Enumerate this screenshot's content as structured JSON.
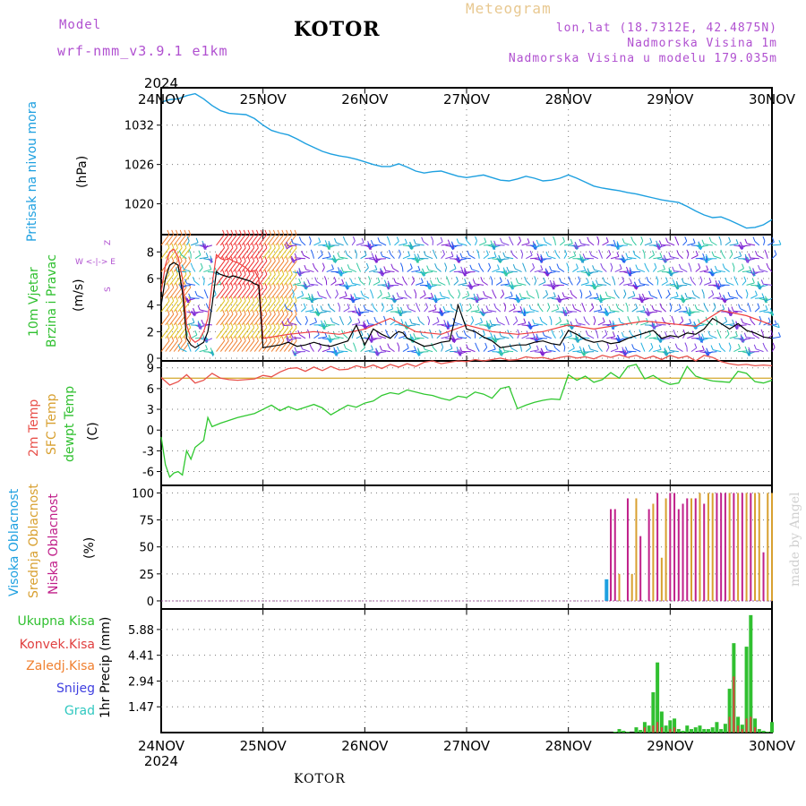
{
  "header": {
    "model_label": "Model",
    "model_name": "wrf-nmm_v3.9.1 e1km",
    "title": "KOTOR",
    "meteogram_label": "Meteogram",
    "lonlat": "lon,lat (18.7312E, 42.4875N)",
    "elevation": "Nadmorska Visina 1m",
    "model_elevation": "Nadmorska Visina u modelu 179.035m",
    "year_top": "2024",
    "year_bottom": "2024",
    "bottom_label": "KOTOR",
    "watermark": "made by Angel"
  },
  "colors": {
    "pressure": "#1ea0e0",
    "temp_2m": "#e8504a",
    "sfc_temp": "#d8b040",
    "dewpoint": "#30c830",
    "cloud_high": "#1ea0e0",
    "cloud_mid": "#d8a030",
    "cloud_low": "#c0208a",
    "rain_total": "#30c030",
    "rain_conv": "#e04040",
    "freezing": "#f08030",
    "snow": "#4040e0",
    "grad": "#30c8c0",
    "wind_speed": "#000000",
    "gust": "#f04040"
  },
  "panel_labels": {
    "pressure": {
      "name": "Pritisak na nivou mora",
      "unit": "(hPa)"
    },
    "wind": {
      "name1": "10m Vjetar",
      "name2": "Brzina i Pravac",
      "unit": "(m/s)",
      "compass1": "Z",
      "compass2": "W <-|-> E",
      "compass3": "S"
    },
    "temp": {
      "name1": "2m Temp",
      "name2": "SFC Temp",
      "name3": "dewpt Temp",
      "unit": "(C)"
    },
    "cloud": {
      "name1": "Visoka Oblacnost",
      "name2": "Srednja Oblacnost",
      "name3": "Niska Oblacnost",
      "unit": "(%)"
    },
    "precip": {
      "unit": "1hr Precip (mm)",
      "legend": [
        "Ukupna Kisa",
        "Konvek.Kisa",
        "Zaledj.Kisa",
        "Snijeg",
        "Grad"
      ]
    }
  },
  "chart_data": [
    {
      "type": "line",
      "title": "",
      "ylabel": "Pritisak na nivou mora (hPa)",
      "x_ticks": [
        "24NOV",
        "25NOV",
        "26NOV",
        "27NOV",
        "28NOV",
        "29NOV",
        "30NOV"
      ],
      "y_ticks": [
        1020,
        1026,
        1032
      ],
      "ylim": [
        1015.3,
        1037.7
      ],
      "x_hours_range": [
        0,
        144
      ],
      "series": [
        {
          "name": "Pritisak na nivou mora",
          "x": [
            0,
            2,
            4,
            6,
            8,
            10,
            12,
            14,
            16,
            18,
            20,
            22,
            24,
            26,
            28,
            30,
            32,
            34,
            36,
            38,
            40,
            42,
            44,
            46,
            48,
            50,
            52,
            54,
            56,
            58,
            60,
            62,
            64,
            66,
            68,
            70,
            72,
            74,
            76,
            78,
            80,
            82,
            84,
            86,
            88,
            90,
            92,
            94,
            96,
            98,
            100,
            102,
            104,
            106,
            108,
            110,
            112,
            114,
            116,
            118,
            120,
            122,
            124,
            126,
            128,
            130,
            132,
            134,
            136,
            138,
            140,
            142,
            144
          ],
          "y": [
            1035.5,
            1035.9,
            1036.0,
            1036.5,
            1036.8,
            1036.0,
            1035.0,
            1034.2,
            1033.8,
            1033.7,
            1033.6,
            1033.0,
            1032.0,
            1031.2,
            1030.8,
            1030.5,
            1029.9,
            1029.2,
            1028.6,
            1028.0,
            1027.6,
            1027.3,
            1027.1,
            1026.8,
            1026.4,
            1026.0,
            1025.7,
            1025.7,
            1026.1,
            1025.6,
            1025.0,
            1024.7,
            1024.9,
            1025.0,
            1024.6,
            1024.2,
            1024.0,
            1024.2,
            1024.4,
            1024.0,
            1023.6,
            1023.5,
            1023.8,
            1024.2,
            1023.9,
            1023.5,
            1023.6,
            1023.9,
            1024.4,
            1023.9,
            1023.3,
            1022.7,
            1022.4,
            1022.2,
            1022.0,
            1021.7,
            1021.5,
            1021.2,
            1020.9,
            1020.6,
            1020.4,
            1020.2,
            1019.6,
            1018.9,
            1018.3,
            1017.9,
            1018.0,
            1017.5,
            1016.9,
            1016.3,
            1016.4,
            1016.8,
            1017.6
          ]
        }
      ]
    },
    {
      "type": "line",
      "title": "",
      "ylabel": "10m Vjetar Brzina i Pravac (m/s)",
      "y_ticks": [
        0,
        2,
        4,
        6,
        8
      ],
      "ylim": [
        -0.2,
        9.3
      ],
      "x_hours_range": [
        0,
        144
      ],
      "barb_rows_ms": [
        0.5,
        1.5,
        2.5,
        3.5,
        4.5,
        5.5,
        6.5,
        7.5,
        8.5
      ],
      "series": [
        {
          "name": "speed",
          "x": [
            0,
            1,
            2,
            3,
            4,
            5,
            6,
            7,
            8,
            9,
            10,
            11,
            12,
            13,
            14,
            15,
            16,
            17,
            18,
            19,
            20,
            21,
            22,
            23,
            24,
            26,
            28,
            30,
            32,
            34,
            36,
            38,
            40,
            42,
            44,
            46,
            48,
            50,
            52,
            54,
            55,
            56,
            57,
            58,
            60,
            62,
            64,
            66,
            68,
            70,
            72,
            74,
            76,
            78,
            80,
            82,
            84,
            86,
            88,
            90,
            92,
            94,
            96,
            98,
            100,
            102,
            104,
            106,
            108,
            110,
            112,
            114,
            116,
            118,
            120,
            122,
            124,
            126,
            128,
            130,
            132,
            134,
            136,
            138,
            140,
            142,
            144
          ],
          "y": [
            4.0,
            6.0,
            7.0,
            7.2,
            7.0,
            5.0,
            1.5,
            1.0,
            0.8,
            1.0,
            1.2,
            2.0,
            4.0,
            6.5,
            6.3,
            6.2,
            6.1,
            6.2,
            6.1,
            6.0,
            5.9,
            5.8,
            5.6,
            5.5,
            0.8,
            0.9,
            1.0,
            1.2,
            0.9,
            1.0,
            1.2,
            1.0,
            0.9,
            1.1,
            1.3,
            2.5,
            1.0,
            2.2,
            1.8,
            1.5,
            1.8,
            2.0,
            1.9,
            1.5,
            1.2,
            0.9,
            1.0,
            1.2,
            1.3,
            4.0,
            2.2,
            2.0,
            1.6,
            1.3,
            0.8,
            0.9,
            1.0,
            1.0,
            1.2,
            1.3,
            1.1,
            1.0,
            2.1,
            1.8,
            1.4,
            1.2,
            1.3,
            1.1,
            1.2,
            1.5,
            1.7,
            1.9,
            2.1,
            1.5,
            1.7,
            1.6,
            1.9,
            1.8,
            2.2,
            3.0,
            2.6,
            2.2,
            2.6,
            2.1,
            1.9,
            1.6,
            1.5
          ]
        },
        {
          "name": "gust",
          "x": [
            0,
            1,
            2,
            3,
            4,
            5,
            6,
            7,
            8,
            9,
            10,
            11,
            12,
            13,
            14,
            15,
            16,
            17,
            18,
            19,
            20,
            21,
            22,
            23,
            24,
            30,
            36,
            42,
            48,
            54,
            60,
            66,
            72,
            78,
            84,
            90,
            96,
            102,
            108,
            114,
            120,
            126,
            132,
            138,
            144
          ],
          "y": [
            5.0,
            7.0,
            8.0,
            8.2,
            7.6,
            6.0,
            2.5,
            1.5,
            1.2,
            1.4,
            2.0,
            3.0,
            5.5,
            7.8,
            7.5,
            7.4,
            7.5,
            7.3,
            7.2,
            7.0,
            6.8,
            6.5,
            6.6,
            6.0,
            1.5,
            1.8,
            2.0,
            1.8,
            2.2,
            3.0,
            2.0,
            1.8,
            2.5,
            2.0,
            1.8,
            2.0,
            2.5,
            2.2,
            2.5,
            2.8,
            2.6,
            2.4,
            3.6,
            3.2,
            2.5
          ]
        }
      ]
    },
    {
      "type": "line",
      "title": "",
      "ylabel": "(C)",
      "y_ticks": [
        -6,
        -3,
        0,
        3,
        6,
        9
      ],
      "ylim": [
        -8.0,
        10.0
      ],
      "x_hours_range": [
        0,
        144
      ],
      "series": [
        {
          "name": "2m Temp",
          "x": [
            0,
            2,
            4,
            6,
            8,
            10,
            12,
            14,
            16,
            18,
            20,
            22,
            24,
            26,
            28,
            30,
            32,
            34,
            36,
            38,
            40,
            42,
            44,
            46,
            48,
            50,
            52,
            54,
            56,
            58,
            60,
            62,
            64,
            66,
            68,
            70,
            72,
            74,
            76,
            78,
            80,
            82,
            84,
            86,
            88,
            90,
            92,
            94,
            96,
            98,
            100,
            102,
            104,
            106,
            108,
            110,
            112,
            114,
            116,
            118,
            120,
            122,
            124,
            126,
            128,
            130,
            132,
            134,
            136,
            138,
            140,
            142,
            144
          ],
          "y": [
            7.6,
            6.5,
            7.0,
            8.0,
            6.8,
            7.2,
            8.2,
            7.5,
            7.3,
            7.2,
            7.3,
            7.4,
            7.9,
            7.7,
            8.4,
            8.9,
            9.0,
            8.5,
            9.1,
            8.6,
            9.2,
            8.7,
            8.8,
            9.3,
            9.0,
            9.4,
            8.9,
            9.5,
            9.1,
            9.6,
            9.2,
            9.8,
            10.0,
            9.6,
            9.8,
            10.0,
            9.9,
            10.2,
            10.0,
            10.2,
            10.4,
            10.1,
            10.2,
            10.6,
            10.4,
            10.5,
            10.2,
            10.5,
            10.7,
            10.4,
            10.6,
            10.3,
            10.8,
            10.5,
            10.9,
            10.5,
            10.8,
            10.3,
            10.7,
            10.2,
            10.8,
            10.4,
            10.7,
            10.0,
            10.8,
            10.5,
            9.9,
            9.6,
            9.4,
            9.5,
            9.3,
            9.4,
            9.3
          ]
        },
        {
          "name": "SFC Temp",
          "x": [
            0,
            144
          ],
          "y": [
            7.5,
            7.5
          ]
        },
        {
          "name": "dewpt Temp",
          "x": [
            0,
            1,
            2,
            3,
            4,
            5,
            6,
            7,
            8,
            9,
            10,
            11,
            12,
            14,
            16,
            18,
            20,
            22,
            24,
            26,
            28,
            30,
            32,
            34,
            36,
            38,
            40,
            42,
            44,
            46,
            48,
            50,
            52,
            54,
            56,
            58,
            60,
            62,
            64,
            66,
            68,
            70,
            72,
            74,
            76,
            78,
            80,
            82,
            84,
            86,
            88,
            90,
            92,
            94,
            96,
            98,
            100,
            102,
            104,
            106,
            108,
            110,
            112,
            114,
            116,
            118,
            120,
            122,
            124,
            126,
            128,
            130,
            132,
            134,
            136,
            138,
            140,
            142,
            144
          ],
          "y": [
            -1.0,
            -5.0,
            -6.8,
            -6.2,
            -6.0,
            -6.5,
            -3.0,
            -4.2,
            -2.5,
            -2.0,
            -1.5,
            1.8,
            0.5,
            1.0,
            1.4,
            1.8,
            2.1,
            2.4,
            3.0,
            3.6,
            2.8,
            3.4,
            2.9,
            3.3,
            3.7,
            3.2,
            2.2,
            2.9,
            3.6,
            3.3,
            3.9,
            4.2,
            5.0,
            5.4,
            5.2,
            5.8,
            5.5,
            5.2,
            5.0,
            4.6,
            4.3,
            4.9,
            4.7,
            5.5,
            5.2,
            4.6,
            6.0,
            6.3,
            3.1,
            3.6,
            4.0,
            4.3,
            4.5,
            4.4,
            8.0,
            7.2,
            7.8,
            6.9,
            7.3,
            8.3,
            7.5,
            9.2,
            9.5,
            7.4,
            7.9,
            7.1,
            6.6,
            6.8,
            9.2,
            7.8,
            7.4,
            7.1,
            7.0,
            6.9,
            8.5,
            8.2,
            7.0,
            6.8,
            7.2
          ]
        }
      ]
    },
    {
      "type": "bar",
      "title": "",
      "ylabel": "(%)",
      "y_ticks": [
        0,
        25,
        50,
        75,
        100
      ],
      "ylim": [
        -7.5,
        107.0
      ],
      "x_hours_range": [
        0,
        144
      ],
      "series": [
        {
          "name": "Visoka Oblacnost",
          "x": [
            105
          ],
          "y": [
            20
          ]
        },
        {
          "name": "Srednja Oblacnost",
          "x": [
            108,
            111,
            112,
            116,
            118,
            119,
            125,
            127,
            129,
            130,
            134,
            136,
            138,
            140,
            141,
            143,
            144
          ],
          "y": [
            25,
            25,
            95,
            90,
            40,
            95,
            95,
            100,
            100,
            100,
            100,
            100,
            100,
            100,
            100,
            100,
            100
          ]
        },
        {
          "name": "Niska Oblacnost",
          "x": [
            106,
            107,
            110,
            113,
            115,
            117,
            120,
            121,
            122,
            123,
            124,
            126,
            128,
            131,
            132,
            133,
            135,
            137,
            139,
            142
          ],
          "y": [
            85,
            85,
            95,
            60,
            85,
            100,
            100,
            100,
            85,
            90,
            95,
            95,
            90,
            100,
            100,
            100,
            100,
            100,
            100,
            45
          ]
        }
      ]
    },
    {
      "type": "bar",
      "title": "",
      "ylabel": "1hr Precip (mm)",
      "y_ticks": [
        1.47,
        2.94,
        4.41,
        5.88
      ],
      "ylim": [
        0,
        7.05
      ],
      "x_hours_range": [
        0,
        144
      ],
      "series": [
        {
          "name": "Ukupna Kisa",
          "x": [
            107,
            108,
            109,
            110,
            112,
            113,
            114,
            115,
            116,
            117,
            118,
            119,
            120,
            121,
            122,
            123,
            124,
            125,
            126,
            127,
            128,
            129,
            130,
            131,
            132,
            133,
            134,
            135,
            136,
            137,
            138,
            139,
            140,
            141,
            142,
            143,
            144
          ],
          "y": [
            0.05,
            0.2,
            0.1,
            0.05,
            0.3,
            0.15,
            0.6,
            0.4,
            2.3,
            4.0,
            1.2,
            0.4,
            0.7,
            0.8,
            0.2,
            0.1,
            0.4,
            0.2,
            0.3,
            0.4,
            0.2,
            0.2,
            0.3,
            0.6,
            0.2,
            0.5,
            2.5,
            5.1,
            0.9,
            0.45,
            4.9,
            6.7,
            0.8,
            0.2,
            0.1,
            0.05,
            0.6
          ]
        },
        {
          "name": "Konvek.Kisa",
          "x": [
            114,
            116,
            117,
            118,
            120,
            121,
            134,
            135,
            136,
            137,
            138,
            139,
            140
          ],
          "y": [
            0.3,
            0.4,
            0.6,
            0.3,
            0.2,
            0.3,
            0.9,
            3.2,
            0.4,
            0.2,
            0.8,
            0.9,
            0.3
          ]
        }
      ]
    }
  ]
}
